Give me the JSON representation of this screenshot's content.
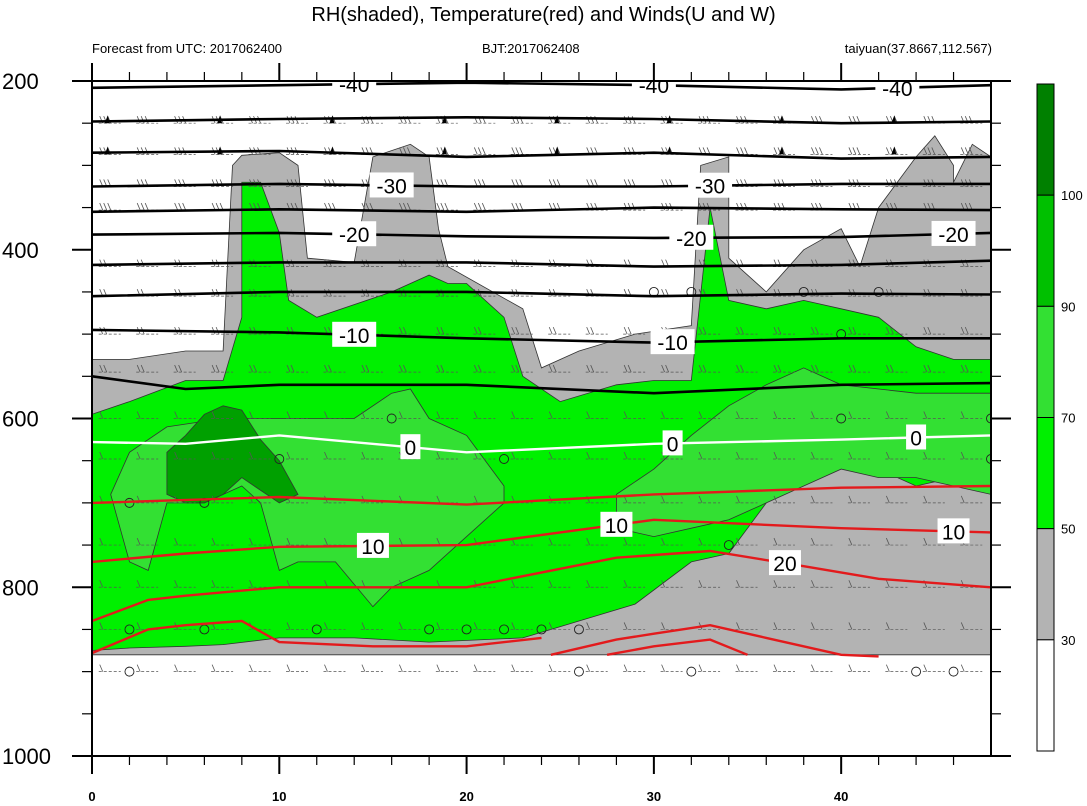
{
  "title": "RH(shaded), Temperature(red) and Winds(U and W)",
  "left_subtitle": "Forecast from UTC: 2017062400",
  "center_subtitle": "BJT:2017062408",
  "right_subtitle": "taiyuan(37.8667,112.567)",
  "chart_data": {
    "type": "heatmap",
    "x_ticks": [
      0,
      10,
      20,
      30,
      40
    ],
    "xlim": [
      0,
      48
    ],
    "y_ticks": [
      200,
      400,
      600,
      800,
      1000
    ],
    "ylim": [
      200,
      1000
    ],
    "y_inverted": true,
    "colorbar": {
      "levels": [
        30,
        50,
        70,
        90,
        100
      ],
      "colors": [
        "#ffffff",
        "#b3b3b3",
        "#00f000",
        "#33e033",
        "#00c000",
        "#008000"
      ]
    },
    "rh_regions": [
      {
        "level": 40,
        "color": "#b3b3b3",
        "points": [
          [
            0,
            530
          ],
          [
            2,
            530
          ],
          [
            5,
            520
          ],
          [
            7,
            520
          ],
          [
            7.5,
            300
          ],
          [
            8,
            288
          ],
          [
            10,
            285
          ],
          [
            11,
            300
          ],
          [
            11.5,
            410
          ],
          [
            14,
            415
          ],
          [
            15,
            290
          ],
          [
            17,
            275
          ],
          [
            18,
            290
          ],
          [
            18.5,
            375
          ],
          [
            19,
            420
          ],
          [
            23,
            470
          ],
          [
            24,
            540
          ],
          [
            26,
            520
          ],
          [
            29,
            500
          ],
          [
            32,
            490
          ],
          [
            32.5,
            300
          ],
          [
            34,
            290
          ],
          [
            34,
            410
          ],
          [
            36,
            450
          ],
          [
            38,
            400
          ],
          [
            40,
            375
          ],
          [
            41,
            420
          ],
          [
            42,
            350
          ],
          [
            44,
            290
          ],
          [
            45,
            265
          ],
          [
            46,
            300
          ],
          [
            46,
            320
          ],
          [
            47,
            275
          ],
          [
            48,
            290
          ],
          [
            48,
            880
          ],
          [
            0,
            880
          ]
        ]
      },
      {
        "level": 50,
        "color": "#00f000",
        "points": [
          [
            0,
            595
          ],
          [
            2,
            580
          ],
          [
            5,
            555
          ],
          [
            7,
            555
          ],
          [
            8,
            480
          ],
          [
            8,
            320
          ],
          [
            9,
            320
          ],
          [
            10,
            380
          ],
          [
            10.5,
            460
          ],
          [
            12,
            480
          ],
          [
            16,
            450
          ],
          [
            18,
            430
          ],
          [
            19,
            440
          ],
          [
            20,
            440
          ],
          [
            21,
            460
          ],
          [
            22,
            480
          ],
          [
            23,
            550
          ],
          [
            25,
            580
          ],
          [
            28,
            560
          ],
          [
            30,
            555
          ],
          [
            32,
            555
          ],
          [
            33,
            350
          ],
          [
            34,
            460
          ],
          [
            36,
            470
          ],
          [
            38,
            460
          ],
          [
            40,
            470
          ],
          [
            42,
            480
          ],
          [
            44,
            515
          ],
          [
            46,
            530
          ],
          [
            48,
            530
          ],
          [
            48,
            690
          ],
          [
            46,
            670
          ],
          [
            44,
            680
          ],
          [
            40,
            640
          ],
          [
            38,
            640
          ],
          [
            36,
            700
          ],
          [
            34,
            760
          ],
          [
            32,
            770
          ],
          [
            29,
            820
          ],
          [
            26,
            840
          ],
          [
            23,
            860
          ],
          [
            18,
            865
          ],
          [
            14,
            860
          ],
          [
            10,
            860
          ],
          [
            7,
            868
          ],
          [
            5,
            870
          ],
          [
            2,
            872
          ],
          [
            0,
            875
          ]
        ]
      },
      {
        "level": 70,
        "color": "#33e033",
        "points": [
          [
            4,
            610
          ],
          [
            7,
            600
          ],
          [
            10,
            600
          ],
          [
            12,
            600
          ],
          [
            14,
            600
          ],
          [
            16,
            570
          ],
          [
            17,
            565
          ],
          [
            18,
            600
          ],
          [
            20,
            620
          ],
          [
            22,
            680
          ],
          [
            22,
            700
          ],
          [
            20,
            740
          ],
          [
            18,
            780
          ],
          [
            16,
            800
          ],
          [
            15,
            823
          ],
          [
            13,
            770
          ],
          [
            11,
            770
          ],
          [
            10,
            780
          ],
          [
            9,
            700
          ],
          [
            8,
            680
          ],
          [
            6,
            700
          ],
          [
            4,
            700
          ],
          [
            3,
            780
          ],
          [
            2,
            770
          ],
          [
            1,
            690
          ],
          [
            2,
            640
          ]
        ]
      },
      {
        "level": 70,
        "color": "#33e033",
        "points": [
          [
            32,
            620
          ],
          [
            34,
            585
          ],
          [
            36,
            560
          ],
          [
            38,
            540
          ],
          [
            40,
            560
          ],
          [
            44,
            570
          ],
          [
            48,
            570
          ],
          [
            48,
            690
          ],
          [
            46,
            680
          ],
          [
            44,
            670
          ],
          [
            42,
            670
          ],
          [
            40,
            660
          ],
          [
            38,
            680
          ],
          [
            36,
            700
          ],
          [
            34,
            720
          ],
          [
            32,
            730
          ],
          [
            30,
            740
          ],
          [
            28,
            730
          ],
          [
            28,
            690
          ],
          [
            30,
            660
          ]
        ]
      },
      {
        "level": 90,
        "color": "#00a000",
        "points": [
          [
            4,
            640
          ],
          [
            5,
            620
          ],
          [
            6,
            595
          ],
          [
            7,
            585
          ],
          [
            8,
            590
          ],
          [
            9,
            625
          ],
          [
            10,
            650
          ],
          [
            11,
            690
          ],
          [
            10,
            700
          ],
          [
            8,
            670
          ],
          [
            7,
            690
          ],
          [
            6,
            700
          ],
          [
            5,
            700
          ],
          [
            4,
            690
          ]
        ]
      }
    ],
    "temperature_lines": [
      {
        "value": -40,
        "color": "#000000",
        "labels_at": [
          14,
          30,
          43
        ],
        "points": [
          [
            0,
            208
          ],
          [
            10,
            205
          ],
          [
            20,
            202
          ],
          [
            30,
            205
          ],
          [
            40,
            210
          ],
          [
            48,
            205
          ]
        ]
      },
      {
        "value": -40,
        "color": "#000000",
        "points": [
          [
            0,
            248
          ],
          [
            10,
            245
          ],
          [
            20,
            243
          ],
          [
            30,
            245
          ],
          [
            40,
            250
          ],
          [
            48,
            248
          ]
        ]
      },
      {
        "value": -40,
        "color": "#000000",
        "points": [
          [
            0,
            285
          ],
          [
            10,
            283
          ],
          [
            20,
            290
          ],
          [
            30,
            285
          ],
          [
            40,
            292
          ],
          [
            48,
            290
          ]
        ]
      },
      {
        "value": -30,
        "color": "#000000",
        "labels_at": [
          16,
          33
        ],
        "points": [
          [
            0,
            325
          ],
          [
            10,
            322
          ],
          [
            20,
            325
          ],
          [
            30,
            325
          ],
          [
            40,
            322
          ],
          [
            48,
            322
          ]
        ]
      },
      {
        "value": -30,
        "color": "#000000",
        "points": [
          [
            0,
            355
          ],
          [
            10,
            352
          ],
          [
            20,
            355
          ],
          [
            30,
            350
          ],
          [
            40,
            352
          ],
          [
            48,
            353
          ]
        ]
      },
      {
        "value": -20,
        "color": "#000000",
        "labels_at": [
          14,
          32,
          46
        ],
        "points": [
          [
            0,
            382
          ],
          [
            10,
            380
          ],
          [
            20,
            384
          ],
          [
            30,
            386
          ],
          [
            40,
            385
          ],
          [
            48,
            380
          ]
        ]
      },
      {
        "value": -20,
        "color": "#000000",
        "points": [
          [
            0,
            418
          ],
          [
            10,
            415
          ],
          [
            20,
            415
          ],
          [
            30,
            420
          ],
          [
            40,
            418
          ],
          [
            48,
            413
          ]
        ]
      },
      {
        "value": -10,
        "color": "#000000",
        "points": [
          [
            0,
            455
          ],
          [
            10,
            450
          ],
          [
            20,
            450
          ],
          [
            30,
            455
          ],
          [
            40,
            452
          ],
          [
            48,
            453
          ]
        ]
      },
      {
        "value": -10,
        "color": "#000000",
        "labels_at": [
          14,
          31
        ],
        "points": [
          [
            0,
            495
          ],
          [
            10,
            498
          ],
          [
            20,
            505
          ],
          [
            30,
            510
          ],
          [
            40,
            505
          ],
          [
            48,
            505
          ]
        ]
      },
      {
        "value": -10,
        "color": "#000000",
        "points": [
          [
            0,
            550
          ],
          [
            5,
            565
          ],
          [
            10,
            560
          ],
          [
            20,
            560
          ],
          [
            30,
            570
          ],
          [
            40,
            560
          ],
          [
            48,
            558
          ]
        ]
      },
      {
        "value": 0,
        "color": "#ffffff",
        "labels_at": [
          17,
          31,
          44
        ],
        "points": [
          [
            0,
            628
          ],
          [
            5,
            630
          ],
          [
            10,
            620
          ],
          [
            20,
            640
          ],
          [
            30,
            630
          ],
          [
            40,
            625
          ],
          [
            48,
            620
          ]
        ]
      },
      {
        "value": 10,
        "color": "#e31a1c",
        "points": [
          [
            0,
            700
          ],
          [
            10,
            693
          ],
          [
            20,
            702
          ],
          [
            30,
            690
          ],
          [
            40,
            682
          ],
          [
            48,
            680
          ]
        ]
      },
      {
        "value": 10,
        "color": "#e31a1c",
        "labels_at": [
          15,
          28,
          46
        ],
        "points": [
          [
            0,
            770
          ],
          [
            5,
            760
          ],
          [
            10,
            752
          ],
          [
            20,
            750
          ],
          [
            30,
            720
          ],
          [
            40,
            730
          ],
          [
            48,
            735
          ]
        ]
      },
      {
        "value": 20,
        "color": "#e31a1c",
        "labels_at": [
          37
        ],
        "points": [
          [
            0,
            840
          ],
          [
            3,
            815
          ],
          [
            5,
            810
          ],
          [
            10,
            800
          ],
          [
            20,
            800
          ],
          [
            28,
            765
          ],
          [
            33,
            757
          ],
          [
            38,
            775
          ],
          [
            42,
            790
          ],
          [
            48,
            800
          ]
        ]
      },
      {
        "value": 20,
        "color": "#e31a1c",
        "points": [
          [
            0,
            878
          ],
          [
            3,
            850
          ],
          [
            5,
            845
          ],
          [
            8,
            840
          ],
          [
            10,
            865
          ],
          [
            15,
            870
          ],
          [
            20,
            870
          ],
          [
            24,
            860
          ]
        ]
      },
      {
        "value": 20,
        "color": "#e31a1c",
        "points": [
          [
            24.5,
            880
          ],
          [
            28,
            862
          ],
          [
            30,
            855
          ],
          [
            33,
            845
          ],
          [
            36,
            860
          ],
          [
            40,
            880
          ],
          [
            42,
            882
          ]
        ]
      },
      {
        "value": 20,
        "color": "#e31a1c",
        "points": [
          [
            27.5,
            880
          ],
          [
            30,
            870
          ],
          [
            33,
            862
          ],
          [
            35,
            880
          ]
        ]
      }
    ],
    "temperature_label_values": {
      "-40": "-40",
      "-30": "-30",
      "-20": "-20",
      "-10": "-10",
      "0": "0",
      "10": "10",
      "20": "20"
    },
    "wind_levels": [
      250,
      287,
      325,
      353,
      420,
      455,
      500,
      545,
      600,
      648,
      700,
      750,
      800,
      850,
      900
    ],
    "calm_points": [
      [
        2,
        700
      ],
      [
        6,
        700
      ],
      [
        10,
        648
      ],
      [
        16,
        600
      ],
      [
        22,
        648
      ],
      [
        2,
        850
      ],
      [
        6,
        850
      ],
      [
        12,
        850
      ],
      [
        18,
        850
      ],
      [
        20,
        850
      ],
      [
        22,
        850
      ],
      [
        24,
        850
      ],
      [
        26,
        850
      ],
      [
        2,
        900
      ],
      [
        26,
        900
      ],
      [
        32,
        900
      ],
      [
        30,
        450
      ],
      [
        32,
        450
      ],
      [
        38,
        450
      ],
      [
        42,
        450
      ],
      [
        40,
        500
      ],
      [
        34,
        750
      ],
      [
        40,
        600
      ],
      [
        48,
        600
      ],
      [
        48,
        648
      ],
      [
        44,
        900
      ],
      [
        46,
        900
      ]
    ]
  }
}
